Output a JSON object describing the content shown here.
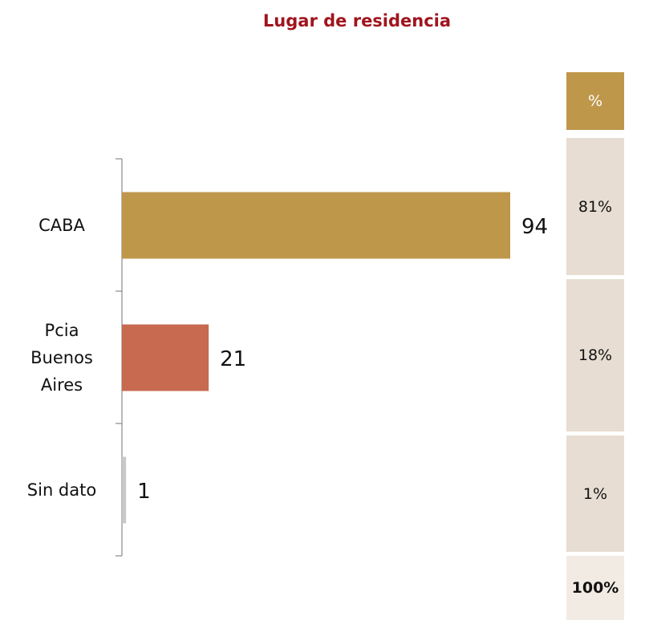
{
  "chart_data": {
    "type": "bar",
    "orientation": "horizontal",
    "title": "Lugar de residencia",
    "categories": [
      "CABA",
      "Pcia Buenos Aires",
      "Sin dato"
    ],
    "values": [
      94,
      21,
      1
    ],
    "colors": [
      "#bf974b",
      "#c76a50",
      "#c8c8c8"
    ]
  },
  "table": {
    "header": "%",
    "rows": [
      "81%",
      "18%",
      "1%"
    ],
    "total": "100%"
  }
}
